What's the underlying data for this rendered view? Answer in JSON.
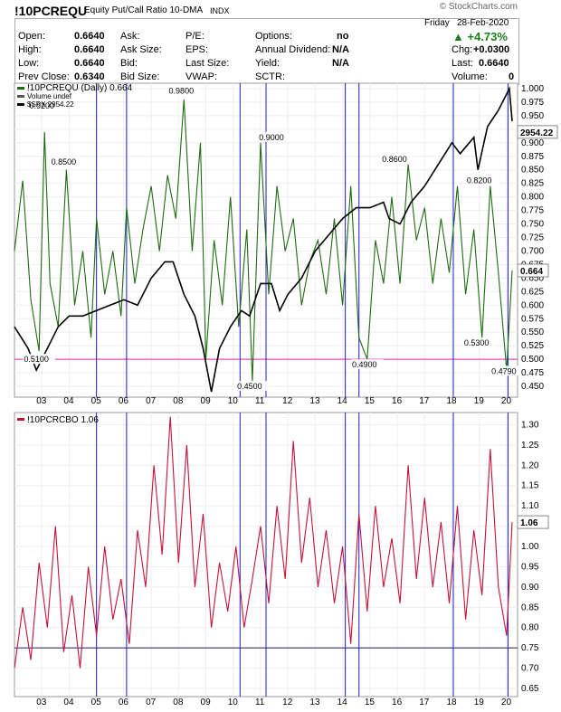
{
  "header": {
    "symbol": "!10PCREQU",
    "description": "Equity Put/Call Ratio 10-DMA",
    "exchange": "INDX",
    "brand": "© StockCharts.com",
    "day": "Friday",
    "date": "28-Feb-2020",
    "change_pct": "+4.73%",
    "quote": {
      "open_label": "Open:",
      "open": "0.6640",
      "high_label": "High:",
      "high": "0.6640",
      "low_label": "Low:",
      "low": "0.6640",
      "prev_label": "Prev Close:",
      "prev": "0.6340",
      "ask_label": "Ask:",
      "asksize_label": "Ask Size:",
      "bid_label": "Bid:",
      "bidsize_label": "Bid Size:",
      "pe_label": "P/E:",
      "eps_label": "EPS:",
      "lastsize_label": "Last Size:",
      "vwap_label": "VWAP:",
      "options_label": "Options:",
      "options": "no",
      "div_label": "Annual Dividend:",
      "div": "N/A",
      "yield_label": "Yield:",
      "yield": "N/A",
      "sctr_label": "SCTR:",
      "chg_label": "Chg:",
      "chg": "+0.0300",
      "last_label": "Last:",
      "last": "0.6640",
      "vol_label": "Volume:",
      "vol": "0"
    }
  },
  "chart_data": [
    {
      "type": "line",
      "panel": "top",
      "legend": [
        "!10PCREQU (Daily) 0.664",
        "Volume undef",
        "$SPX 2954.22"
      ],
      "x_tick_labels": [
        "03",
        "04",
        "05",
        "06",
        "07",
        "08",
        "09",
        "10",
        "11",
        "12",
        "13",
        "14",
        "15",
        "16",
        "17",
        "18",
        "19",
        "20"
      ],
      "y_ticks": [
        0.45,
        0.475,
        0.5,
        0.525,
        0.55,
        0.575,
        0.6,
        0.625,
        0.65,
        0.675,
        0.7,
        0.725,
        0.75,
        0.775,
        0.8,
        0.825,
        0.85,
        0.875,
        0.9,
        0.925,
        0.95,
        0.975,
        1.0
      ],
      "ylim": [
        0.43,
        1.01
      ],
      "last_value_label": "0.664",
      "spx_last_label": "2954.22",
      "horizontal_line": 0.5,
      "annotations": [
        {
          "x": 2002.9,
          "y": 0.5,
          "label": "0.5100"
        },
        {
          "x": 2003.1,
          "y": 0.968,
          "label": "0.9200"
        },
        {
          "x": 2003.9,
          "y": 0.865,
          "label": "0.8500"
        },
        {
          "x": 2008.2,
          "y": 0.996,
          "label": "0.9800"
        },
        {
          "x": 2010.7,
          "y": 0.45,
          "label": "0.4500"
        },
        {
          "x": 2011.5,
          "y": 0.91,
          "label": "0.9000"
        },
        {
          "x": 2014.9,
          "y": 0.49,
          "label": "0.4900"
        },
        {
          "x": 2016.0,
          "y": 0.87,
          "label": "0.8600"
        },
        {
          "x": 2019.0,
          "y": 0.53,
          "label": "0.5300"
        },
        {
          "x": 2019.1,
          "y": 0.83,
          "label": "0.8200"
        },
        {
          "x": 2020.0,
          "y": 0.478,
          "label": "0.4790"
        }
      ],
      "series": [
        {
          "name": "!10PCREQU",
          "color": "#1e6b12",
          "x": [
            2002.0,
            2002.3,
            2002.6,
            2002.9,
            2003.1,
            2003.3,
            2003.6,
            2003.9,
            2004.2,
            2004.5,
            2004.8,
            2005.0,
            2005.3,
            2005.6,
            2005.9,
            2006.1,
            2006.4,
            2006.7,
            2007.0,
            2007.3,
            2007.6,
            2007.9,
            2008.2,
            2008.5,
            2008.8,
            2009.0,
            2009.3,
            2009.6,
            2009.9,
            2010.2,
            2010.5,
            2010.7,
            2011.0,
            2011.3,
            2011.6,
            2011.9,
            2012.2,
            2012.5,
            2012.8,
            2013.1,
            2013.4,
            2013.7,
            2014.0,
            2014.3,
            2014.6,
            2014.9,
            2015.2,
            2015.5,
            2015.8,
            2016.1,
            2016.4,
            2016.7,
            2017.0,
            2017.3,
            2017.6,
            2017.9,
            2018.2,
            2018.5,
            2018.8,
            2019.1,
            2019.4,
            2019.7,
            2020.0,
            2020.2
          ],
          "y": [
            0.7,
            0.83,
            0.61,
            0.515,
            0.92,
            0.64,
            0.56,
            0.85,
            0.6,
            0.7,
            0.54,
            0.76,
            0.62,
            0.7,
            0.58,
            0.78,
            0.64,
            0.74,
            0.82,
            0.7,
            0.84,
            0.76,
            0.98,
            0.7,
            0.9,
            0.5,
            0.72,
            0.6,
            0.8,
            0.56,
            0.74,
            0.46,
            0.9,
            0.62,
            0.82,
            0.7,
            0.76,
            0.6,
            0.68,
            0.72,
            0.62,
            0.76,
            0.6,
            0.82,
            0.54,
            0.5,
            0.72,
            0.64,
            0.8,
            0.64,
            0.86,
            0.72,
            0.78,
            0.64,
            0.76,
            0.66,
            0.82,
            0.62,
            0.74,
            0.54,
            0.82,
            0.66,
            0.479,
            0.664
          ]
        },
        {
          "name": "$SPX",
          "color": "#000000",
          "x": [
            2002.0,
            2002.5,
            2002.8,
            2003.2,
            2003.6,
            2004.0,
            2004.5,
            2005.0,
            2005.5,
            2006.0,
            2006.5,
            2007.0,
            2007.5,
            2007.8,
            2008.2,
            2008.6,
            2008.9,
            2009.2,
            2009.5,
            2009.9,
            2010.3,
            2010.6,
            2011.0,
            2011.4,
            2011.7,
            2012.0,
            2012.5,
            2013.0,
            2013.5,
            2014.0,
            2014.5,
            2015.0,
            2015.5,
            2015.7,
            2016.1,
            2016.5,
            2017.0,
            2017.5,
            2018.0,
            2018.3,
            2018.8,
            2018.95,
            2019.3,
            2019.7,
            2020.0,
            2020.1,
            2020.2
          ],
          "y": [
            0.56,
            0.52,
            0.48,
            0.52,
            0.56,
            0.58,
            0.58,
            0.59,
            0.6,
            0.61,
            0.6,
            0.65,
            0.68,
            0.68,
            0.62,
            0.58,
            0.52,
            0.44,
            0.52,
            0.56,
            0.59,
            0.58,
            0.64,
            0.64,
            0.59,
            0.62,
            0.65,
            0.7,
            0.73,
            0.76,
            0.78,
            0.78,
            0.79,
            0.76,
            0.75,
            0.79,
            0.82,
            0.86,
            0.9,
            0.88,
            0.91,
            0.85,
            0.93,
            0.96,
            0.99,
            1.0,
            0.94
          ]
        }
      ]
    },
    {
      "type": "line",
      "panel": "bottom",
      "legend": [
        "!10PCRCBO 1.06"
      ],
      "x_tick_labels": [
        "03",
        "04",
        "05",
        "06",
        "07",
        "08",
        "09",
        "10",
        "11",
        "12",
        "13",
        "14",
        "15",
        "16",
        "17",
        "18",
        "19",
        "20"
      ],
      "y_ticks": [
        0.65,
        0.7,
        0.75,
        0.8,
        0.85,
        0.9,
        0.95,
        1.0,
        1.05,
        1.1,
        1.15,
        1.2,
        1.25,
        1.3
      ],
      "ylim": [
        0.63,
        1.33
      ],
      "last_value_label": "1.06",
      "horizontal_line": 0.75,
      "series": [
        {
          "name": "!10PCRCBO",
          "color": "#c4123a",
          "x": [
            2002.0,
            2002.3,
            2002.6,
            2002.9,
            2003.2,
            2003.5,
            2003.8,
            2004.1,
            2004.4,
            2004.7,
            2005.0,
            2005.3,
            2005.6,
            2005.9,
            2006.2,
            2006.5,
            2006.8,
            2007.1,
            2007.4,
            2007.7,
            2008.0,
            2008.3,
            2008.6,
            2008.9,
            2009.2,
            2009.5,
            2009.8,
            2010.1,
            2010.4,
            2010.7,
            2011.0,
            2011.3,
            2011.6,
            2011.9,
            2012.2,
            2012.5,
            2012.8,
            2013.1,
            2013.4,
            2013.7,
            2014.0,
            2014.3,
            2014.6,
            2014.9,
            2015.2,
            2015.5,
            2015.8,
            2016.1,
            2016.4,
            2016.7,
            2017.0,
            2017.3,
            2017.6,
            2017.9,
            2018.2,
            2018.5,
            2018.8,
            2019.1,
            2019.4,
            2019.7,
            2020.0,
            2020.2
          ],
          "y": [
            0.7,
            0.85,
            0.72,
            0.96,
            0.8,
            1.05,
            0.74,
            0.88,
            0.7,
            0.95,
            0.78,
            1.0,
            0.82,
            0.92,
            0.76,
            1.04,
            0.9,
            1.2,
            0.98,
            1.32,
            0.96,
            1.25,
            0.9,
            1.08,
            0.8,
            0.96,
            0.84,
            1.0,
            0.8,
            0.92,
            1.05,
            0.86,
            1.1,
            0.92,
            1.26,
            0.96,
            1.12,
            0.9,
            1.04,
            0.86,
            1.0,
            0.76,
            1.08,
            0.84,
            1.1,
            0.9,
            1.02,
            0.86,
            1.2,
            0.92,
            1.12,
            0.9,
            1.06,
            0.86,
            1.1,
            0.82,
            1.04,
            0.88,
            1.24,
            0.9,
            0.78,
            1.06
          ]
        }
      ]
    }
  ],
  "vertical_markers": [
    2005.0,
    2006.1,
    2010.25,
    2011.2,
    2014.1,
    2014.6,
    2018.05,
    2020.05
  ]
}
